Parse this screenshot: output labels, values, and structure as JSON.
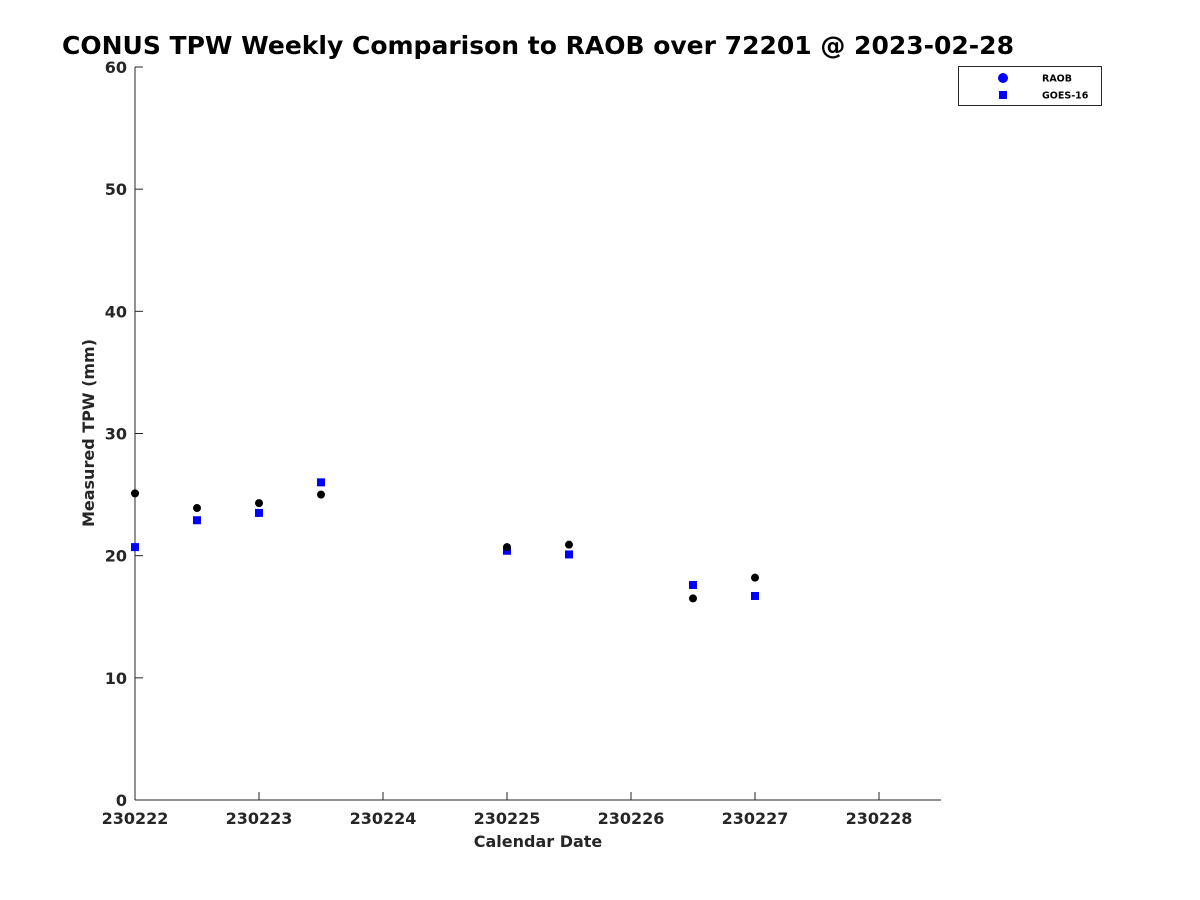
{
  "chart_data": {
    "type": "scatter",
    "title": "CONUS TPW Weekly Comparison to RAOB over 72201 @ 2023-02-28",
    "xlabel": "Calendar Date",
    "ylabel": "Measured TPW (mm)",
    "x_tick_labels": [
      "230222",
      "230223",
      "230224",
      "230225",
      "230226",
      "230227",
      "230228"
    ],
    "x_range": [
      "230222",
      "230228.5"
    ],
    "ylim": [
      0,
      60
    ],
    "y_ticks": [
      0,
      10,
      20,
      30,
      40,
      50,
      60
    ],
    "grid": false,
    "legend_position": "top-right outside",
    "series": [
      {
        "name": "RAOB",
        "marker": "circle",
        "color": "#000000",
        "legend_color": "#0000ff",
        "x": [
          "230222",
          "230222.5",
          "230223",
          "230223.5",
          "230225",
          "230225.5",
          "230226.5",
          "230227"
        ],
        "values": [
          25.1,
          23.9,
          24.3,
          25.0,
          20.7,
          20.9,
          16.5,
          18.2
        ]
      },
      {
        "name": "GOES-16",
        "marker": "square",
        "color": "#0000ff",
        "x": [
          "230222",
          "230222.5",
          "230223",
          "230223.5",
          "230225",
          "230225.5",
          "230226.5",
          "230227"
        ],
        "values": [
          20.7,
          22.9,
          23.5,
          26.0,
          20.4,
          20.1,
          17.6,
          16.7
        ]
      }
    ]
  }
}
